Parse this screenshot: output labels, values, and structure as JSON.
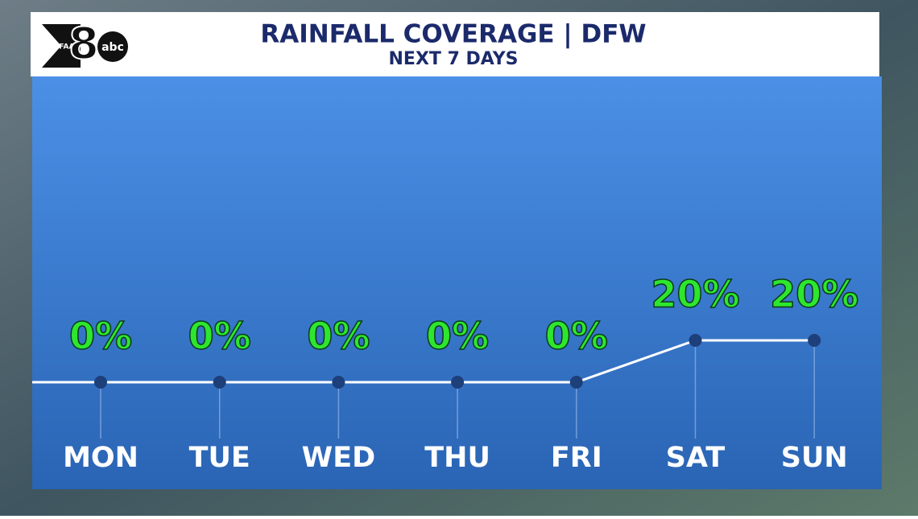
{
  "logo": {
    "station": "WFAA",
    "channel": "8",
    "network": "abc"
  },
  "chart_data": {
    "type": "line",
    "title": "RAINFALL COVERAGE | DFW",
    "subtitle": "NEXT 7 DAYS",
    "categories": [
      "MON",
      "TUE",
      "WED",
      "THU",
      "FRI",
      "SAT",
      "SUN"
    ],
    "values": [
      0,
      0,
      0,
      0,
      0,
      20,
      20
    ],
    "value_labels": [
      "0%",
      "0%",
      "0%",
      "0%",
      "0%",
      "20%",
      "20%"
    ],
    "color": "#ffffff",
    "marker_color": "#1d3f7a",
    "label_color": "#2ee62e"
  }
}
